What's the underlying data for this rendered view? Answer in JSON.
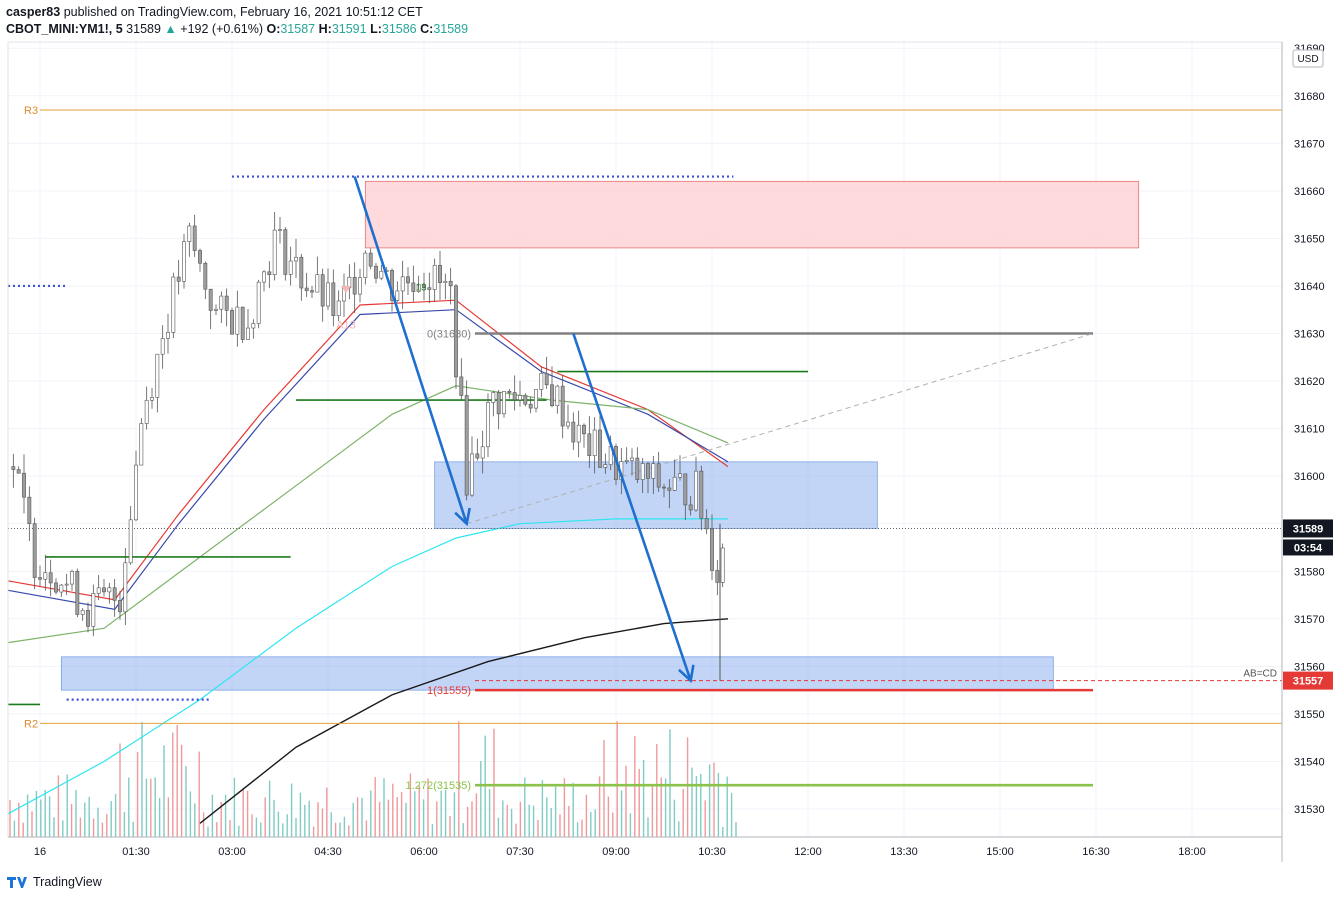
{
  "header": {
    "author": "casper83",
    "published_text": "published on TradingView.com, February 16, 2021 10:51:12 CET",
    "symbol": "CBOT_MINI:YM1!, 5",
    "last": "31589",
    "change": "+192 (+0.61%)",
    "o_label": "O:",
    "o_value": "31587",
    "h_label": "H:",
    "h_value": "31591",
    "l_label": "L:",
    "l_value": "31586",
    "c_label": "C:",
    "c_value": "31589"
  },
  "footer": {
    "brand": "TradingView"
  },
  "colors": {
    "up_candle": "#26a69a",
    "down_candle": "#ef5350",
    "wick": "#555555",
    "arrow": "#1e6fcf",
    "zone_red": "#ffcdd2",
    "zone_blue": "#8fb2f0",
    "pivot": "#e6a23c",
    "green_level": "#1b7a1b",
    "fib_zero": "#808080",
    "fib_one": "#e53935",
    "fib_1272": "#8bc34a",
    "cyan_ma": "#2ee6f0",
    "black_ma": "#1a1a1a"
  },
  "chart_data": {
    "type": "line",
    "symbol": "CBOT_MINI:YM1!",
    "interval": "5",
    "currency": "USD",
    "y_axis": {
      "min": 31525,
      "max": 31690,
      "ticks": [
        31530,
        31540,
        31550,
        31560,
        31570,
        31580,
        31590,
        31600,
        31610,
        31620,
        31630,
        31640,
        31650,
        31660,
        31670,
        31680,
        31690
      ]
    },
    "x_axis": {
      "ticks": [
        "16",
        "01:30",
        "03:00",
        "04:30",
        "06:00",
        "07:30",
        "09:00",
        "10:30",
        "12:00",
        "13:30",
        "15:00",
        "16:30",
        "18:00"
      ]
    },
    "grid": true,
    "price_line": {
      "value": 31589,
      "label": "31589",
      "countdown": "03:54"
    },
    "ab_cd": {
      "value": 31557,
      "label": "AB=CD"
    },
    "pivots": [
      {
        "label": "R3",
        "value": 31677
      },
      {
        "label": "R2",
        "value": 31548
      }
    ],
    "fib_levels": [
      {
        "label": "0(31630)",
        "value": 31630,
        "from": "06:20",
        "to": "16:30"
      },
      {
        "label": "1(31555)",
        "value": 31555,
        "from": "06:20",
        "to": "16:30"
      },
      {
        "label": "1.272(31535)",
        "value": 31535,
        "from": "06:20",
        "to": "16:30"
      }
    ],
    "zones": [
      {
        "color": "red",
        "top": 31662,
        "bottom": 31648,
        "from": "05:05",
        "to": "17:10"
      },
      {
        "color": "blue",
        "top": 31603,
        "bottom": 31589,
        "from": "06:10",
        "to": "13:05"
      },
      {
        "color": "blue",
        "top": 31562,
        "bottom": 31555,
        "from": "00:20",
        "to": "15:50"
      }
    ],
    "green_levels": [
      {
        "value": 31583,
        "from": "00:05",
        "to": "03:55"
      },
      {
        "value": 31616,
        "from": "04:00",
        "to": "07:55"
      },
      {
        "value": 31622,
        "from": "08:05",
        "to": "12:00"
      },
      {
        "value": 31552,
        "from": "-00:30",
        "to": "00:00"
      }
    ],
    "dotted_levels": [
      {
        "value": 31663,
        "from": "03:00",
        "to": "10:50"
      },
      {
        "value": 31640,
        "from": "-00:30",
        "to": "00:25"
      },
      {
        "value": 31553,
        "from": "00:25",
        "to": "02:40"
      }
    ],
    "annotations": [
      "A13",
      "13"
    ],
    "trend_arrows": [
      {
        "from": [
          "04:55",
          31663
        ],
        "to": [
          "06:40",
          31590
        ]
      },
      {
        "from": [
          "08:20",
          31630
        ],
        "to": [
          "10:10",
          31557
        ]
      }
    ],
    "close_series": [
      {
        "time": "-00:25",
        "close": 31602
      },
      {
        "time": "-00:05",
        "close": 31583
      },
      {
        "time": "00:15",
        "close": 31580
      },
      {
        "time": "00:45",
        "close": 31572
      },
      {
        "time": "01:15",
        "close": 31575
      },
      {
        "time": "01:35",
        "close": 31612
      },
      {
        "time": "02:00",
        "close": 31634
      },
      {
        "time": "02:20",
        "close": 31650
      },
      {
        "time": "02:45",
        "close": 31634
      },
      {
        "time": "03:15",
        "close": 31633
      },
      {
        "time": "03:40",
        "close": 31650
      },
      {
        "time": "04:05",
        "close": 31642
      },
      {
        "time": "04:40",
        "close": 31634
      },
      {
        "time": "05:05",
        "close": 31648
      },
      {
        "time": "05:30",
        "close": 31640
      },
      {
        "time": "06:00",
        "close": 31643
      },
      {
        "time": "06:25",
        "close": 31638
      },
      {
        "time": "06:40",
        "close": 31600
      },
      {
        "time": "07:05",
        "close": 31616
      },
      {
        "time": "07:35",
        "close": 31617
      },
      {
        "time": "08:00",
        "close": 31618
      },
      {
        "time": "08:25",
        "close": 31608
      },
      {
        "time": "08:55",
        "close": 31603
      },
      {
        "time": "09:20",
        "close": 31600
      },
      {
        "time": "09:45",
        "close": 31598
      },
      {
        "time": "10:15",
        "close": 31597
      },
      {
        "time": "10:35",
        "close": 31580
      },
      {
        "time": "10:45",
        "close": 31589
      }
    ],
    "moving_averages": [
      {
        "color": "red",
        "points": [
          [
            "-00:30",
            31578
          ],
          [
            "01:10",
            31574
          ],
          [
            "02:10",
            31592
          ],
          [
            "03:30",
            31614
          ],
          [
            "05:00",
            31636
          ],
          [
            "06:30",
            31637
          ],
          [
            "07:50",
            31623
          ],
          [
            "09:30",
            31614
          ],
          [
            "10:45",
            31602
          ]
        ]
      },
      {
        "color": "blue",
        "points": [
          [
            "-00:30",
            31576
          ],
          [
            "01:10",
            31572
          ],
          [
            "02:10",
            31590
          ],
          [
            "03:30",
            31612
          ],
          [
            "05:00",
            31634
          ],
          [
            "06:30",
            31635
          ],
          [
            "07:50",
            31622
          ],
          [
            "09:30",
            31613
          ],
          [
            "10:45",
            31603
          ]
        ]
      },
      {
        "color": "green",
        "points": [
          [
            "-00:30",
            31565
          ],
          [
            "01:00",
            31568
          ],
          [
            "02:30",
            31583
          ],
          [
            "04:00",
            31598
          ],
          [
            "05:30",
            31613
          ],
          [
            "06:30",
            31619
          ],
          [
            "08:00",
            31616
          ],
          [
            "09:30",
            31614
          ],
          [
            "10:45",
            31607
          ]
        ]
      },
      {
        "color": "cyan",
        "points": [
          [
            "-00:30",
            31529
          ],
          [
            "01:00",
            31540
          ],
          [
            "02:30",
            31553
          ],
          [
            "04:00",
            31568
          ],
          [
            "05:30",
            31581
          ],
          [
            "06:30",
            31587
          ],
          [
            "07:30",
            31590
          ],
          [
            "09:00",
            31591
          ],
          [
            "10:45",
            31591
          ]
        ]
      },
      {
        "color": "black",
        "points": [
          [
            "02:30",
            31527
          ],
          [
            "04:00",
            31543
          ],
          [
            "05:30",
            31554
          ],
          [
            "07:00",
            31561
          ],
          [
            "08:30",
            31566
          ],
          [
            "09:45",
            31569
          ],
          [
            "10:45",
            31570
          ]
        ]
      }
    ],
    "volume_note": "volume histogram at bottom of price pane (relative scale)"
  }
}
